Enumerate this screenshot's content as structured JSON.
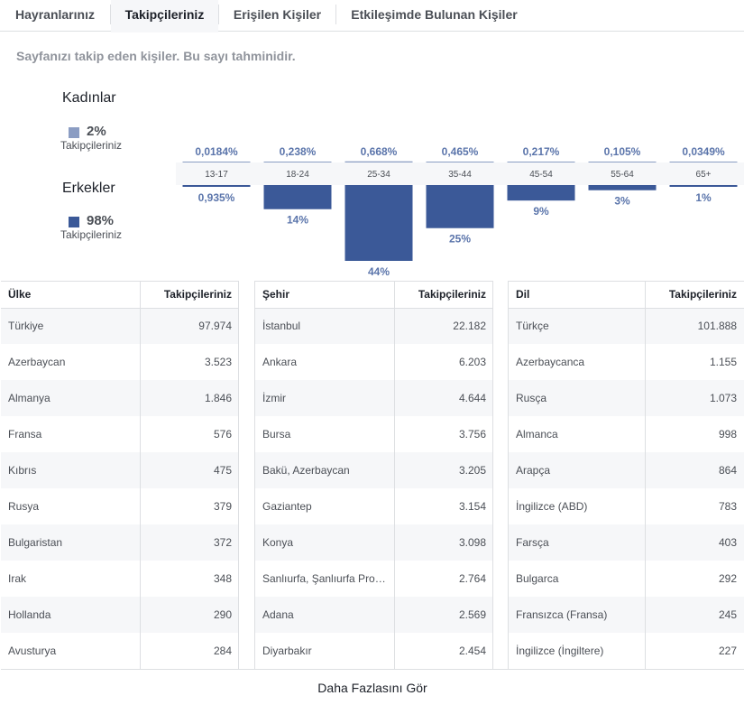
{
  "tabs": [
    {
      "label": "Hayranlarınız",
      "active": false
    },
    {
      "label": "Takipçileriniz",
      "active": true
    },
    {
      "label": "Erişilen Kişiler",
      "active": false
    },
    {
      "label": "Etkileşimde Bulunan Kişiler",
      "active": false
    }
  ],
  "description": "Sayfanızı takip eden kişiler. Bu sayı tahminidir.",
  "gender": {
    "women": {
      "label": "Kadınlar",
      "percent": "2%",
      "sub": "Takipçileriniz",
      "color": "#8b9dc3"
    },
    "men": {
      "label": "Erkekler",
      "percent": "98%",
      "sub": "Takipçileriniz",
      "color": "#3b5998"
    }
  },
  "chart_data": {
    "type": "bar",
    "categories": [
      "13-17",
      "18-24",
      "25-34",
      "35-44",
      "45-54",
      "55-64",
      "65+"
    ],
    "series": [
      {
        "name": "Kadınlar",
        "values": [
          0.0184,
          0.238,
          0.668,
          0.465,
          0.217,
          0.105,
          0.0349
        ],
        "labels": [
          "0,0184%",
          "0,238%",
          "0,668%",
          "0,465%",
          "0,217%",
          "0,105%",
          "0,0349%"
        ],
        "color": "#8b9dc3"
      },
      {
        "name": "Erkekler",
        "values": [
          0.935,
          14,
          44,
          25,
          9,
          3,
          1
        ],
        "labels": [
          "0,935%",
          "14%",
          "44%",
          "25%",
          "9%",
          "3%",
          "1%"
        ],
        "color": "#3b5998"
      }
    ],
    "ylim": [
      0,
      44
    ],
    "label_color": "#5b75ab"
  },
  "tables": {
    "country": {
      "col1": "Ülke",
      "col2": "Takipçileriniz",
      "rows": [
        {
          "name": "Türkiye",
          "value": "97.974"
        },
        {
          "name": "Azerbaycan",
          "value": "3.523"
        },
        {
          "name": "Almanya",
          "value": "1.846"
        },
        {
          "name": "Fransa",
          "value": "576"
        },
        {
          "name": "Kıbrıs",
          "value": "475"
        },
        {
          "name": "Rusya",
          "value": "379"
        },
        {
          "name": "Bulgaristan",
          "value": "372"
        },
        {
          "name": "Irak",
          "value": "348"
        },
        {
          "name": "Hollanda",
          "value": "290"
        },
        {
          "name": "Avusturya",
          "value": "284"
        }
      ]
    },
    "city": {
      "col1": "Şehir",
      "col2": "Takipçileriniz",
      "rows": [
        {
          "name": "İstanbul",
          "value": "22.182"
        },
        {
          "name": "Ankara",
          "value": "6.203"
        },
        {
          "name": "İzmir",
          "value": "4.644"
        },
        {
          "name": "Bursa",
          "value": "3.756"
        },
        {
          "name": "Bakü, Azerbaycan",
          "value": "3.205"
        },
        {
          "name": "Gaziantep",
          "value": "3.154"
        },
        {
          "name": "Konya",
          "value": "3.098"
        },
        {
          "name": "Sanlıurfa, Şanlıurfa Pro…",
          "value": "2.764"
        },
        {
          "name": "Adana",
          "value": "2.569"
        },
        {
          "name": "Diyarbakır",
          "value": "2.454"
        }
      ]
    },
    "language": {
      "col1": "Dil",
      "col2": "Takipçileriniz",
      "rows": [
        {
          "name": "Türkçe",
          "value": "101.888"
        },
        {
          "name": "Azerbaycanca",
          "value": "1.155"
        },
        {
          "name": "Rusça",
          "value": "1.073"
        },
        {
          "name": "Almanca",
          "value": "998"
        },
        {
          "name": "Arapça",
          "value": "864"
        },
        {
          "name": "İngilizce (ABD)",
          "value": "783"
        },
        {
          "name": "Farsça",
          "value": "403"
        },
        {
          "name": "Bulgarca",
          "value": "292"
        },
        {
          "name": "Fransızca (Fransa)",
          "value": "245"
        },
        {
          "name": "İngilizce (İngiltere)",
          "value": "227"
        }
      ]
    }
  },
  "footer": {
    "label": "Daha Fazlasını Gör"
  }
}
